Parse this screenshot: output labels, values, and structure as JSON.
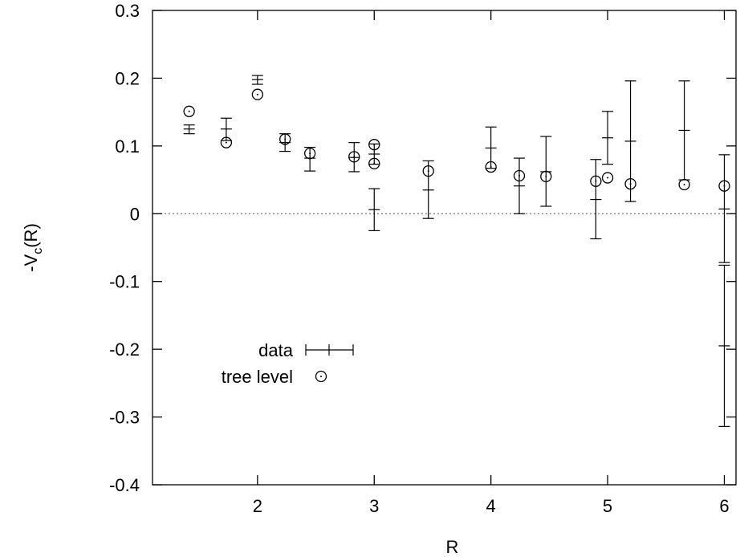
{
  "chart_data": {
    "type": "scatter",
    "xlabel": "R",
    "ylabel": "-V",
    "ylabel_sub": "c",
    "ylabel_tail": "(R)",
    "xlim": [
      1.1,
      6.1
    ],
    "ylim": [
      -0.4,
      0.3
    ],
    "xticks": [
      2,
      3,
      4,
      5,
      6
    ],
    "xtick_labels": [
      "2",
      "3",
      "4",
      "5",
      "6"
    ],
    "yticks": [
      -0.4,
      -0.3,
      -0.2,
      -0.1,
      0,
      0.1,
      0.2,
      0.3
    ],
    "ytick_labels": [
      "-0.4",
      "-0.3",
      "-0.2",
      "-0.1",
      "0",
      "0.1",
      "0.2",
      "0.3"
    ],
    "zero_line": true,
    "grid": false,
    "legend_position": "lower-left",
    "series": [
      {
        "name": "data",
        "marker": "errorbar",
        "points": [
          {
            "x": 1.414,
            "y": 0.125,
            "lo": 0.118,
            "hi": 0.131
          },
          {
            "x": 1.732,
            "y": 0.125,
            "lo": 0.108,
            "hi": 0.141
          },
          {
            "x": 2.0,
            "y": 0.198,
            "lo": 0.191,
            "hi": 0.204
          },
          {
            "x": 2.236,
            "y": 0.105,
            "lo": 0.092,
            "hi": 0.118
          },
          {
            "x": 2.449,
            "y": 0.082,
            "lo": 0.063,
            "hi": 0.098
          },
          {
            "x": 2.828,
            "y": 0.083,
            "lo": 0.062,
            "hi": 0.105
          },
          {
            "x": 3.0,
            "y": 0.088,
            "lo": 0.073,
            "hi": 0.103
          },
          {
            "x": 3.0,
            "y": 0.006,
            "lo": -0.025,
            "hi": 0.037
          },
          {
            "x": 3.464,
            "y": 0.035,
            "lo": -0.007,
            "hi": 0.078
          },
          {
            "x": 4.0,
            "y": 0.097,
            "lo": 0.067,
            "hi": 0.128
          },
          {
            "x": 4.243,
            "y": 0.041,
            "lo": 0.0,
            "hi": 0.082
          },
          {
            "x": 4.472,
            "y": 0.062,
            "lo": 0.011,
            "hi": 0.114
          },
          {
            "x": 4.899,
            "y": 0.021,
            "lo": -0.037,
            "hi": 0.08
          },
          {
            "x": 5.0,
            "y": 0.112,
            "lo": 0.073,
            "hi": 0.151
          },
          {
            "x": 5.196,
            "y": 0.107,
            "lo": 0.018,
            "hi": 0.196
          },
          {
            "x": 5.657,
            "y": 0.123,
            "lo": 0.05,
            "hi": 0.196
          },
          {
            "x": 6.0,
            "y": 0.007,
            "lo": -0.072,
            "hi": 0.087
          },
          {
            "x": 6.0,
            "y": -0.195,
            "lo": -0.314,
            "hi": -0.076
          }
        ]
      },
      {
        "name": "tree level",
        "marker": "circle-dot",
        "points": [
          {
            "x": 1.414,
            "y": 0.151
          },
          {
            "x": 1.732,
            "y": 0.105
          },
          {
            "x": 2.0,
            "y": 0.176
          },
          {
            "x": 2.236,
            "y": 0.11
          },
          {
            "x": 2.449,
            "y": 0.089
          },
          {
            "x": 2.828,
            "y": 0.084
          },
          {
            "x": 3.0,
            "y": 0.102
          },
          {
            "x": 3.0,
            "y": 0.074
          },
          {
            "x": 3.464,
            "y": 0.063
          },
          {
            "x": 4.0,
            "y": 0.069
          },
          {
            "x": 4.243,
            "y": 0.056
          },
          {
            "x": 4.472,
            "y": 0.055
          },
          {
            "x": 4.899,
            "y": 0.048
          },
          {
            "x": 5.0,
            "y": 0.053
          },
          {
            "x": 5.196,
            "y": 0.044
          },
          {
            "x": 5.657,
            "y": 0.043
          },
          {
            "x": 6.0,
            "y": 0.041
          }
        ]
      }
    ]
  }
}
